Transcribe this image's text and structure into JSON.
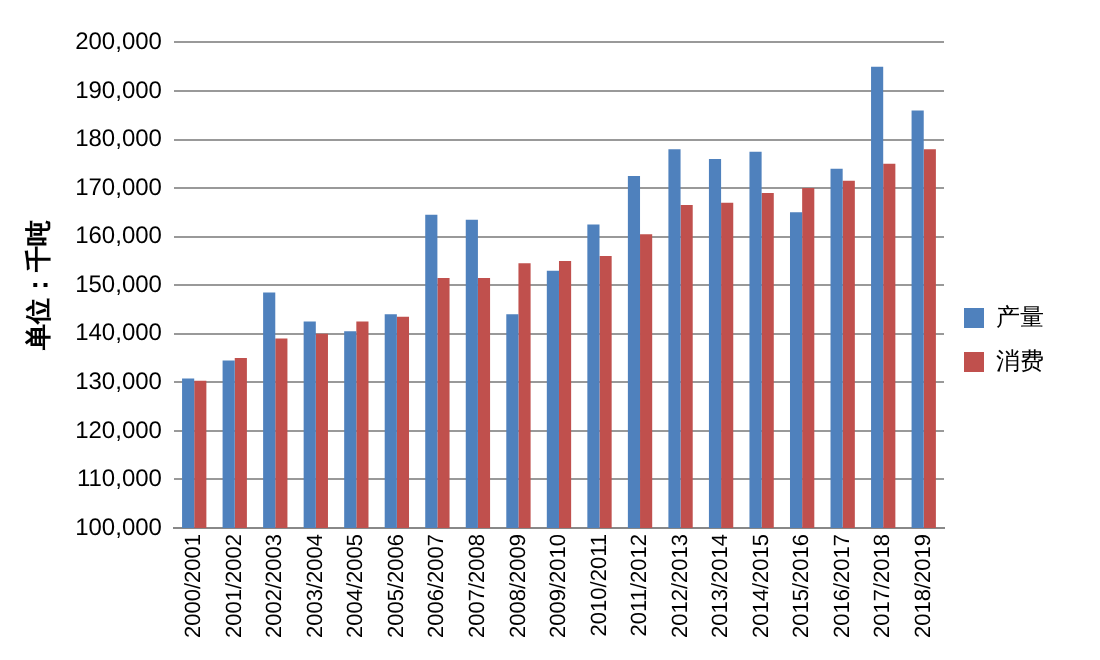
{
  "chart_data": {
    "type": "bar",
    "ylabel": "单位：千吨",
    "categories": [
      "2000/2001",
      "2001/2002",
      "2002/2003",
      "2003/2004",
      "2004/2005",
      "2005/2006",
      "2006/2007",
      "2007/2008",
      "2008/2009",
      "2009/2010",
      "2010/2011",
      "2011/2012",
      "2012/2013",
      "2013/2014",
      "2014/2015",
      "2015/2016",
      "2016/2017",
      "2017/2018",
      "2018/2019"
    ],
    "series": [
      {
        "name": "产量",
        "color": "#4f81bd",
        "values": [
          130800,
          134500,
          148500,
          142500,
          140500,
          144000,
          164500,
          163500,
          144000,
          153000,
          162500,
          172500,
          178000,
          176000,
          177500,
          165000,
          174000,
          195000,
          186000
        ]
      },
      {
        "name": "消费",
        "color": "#c0504d",
        "values": [
          130300,
          135000,
          139000,
          140000,
          142500,
          143500,
          151500,
          151500,
          154500,
          155000,
          156000,
          160500,
          166500,
          167000,
          169000,
          170000,
          171500,
          175000,
          178000
        ]
      }
    ],
    "ylim": [
      100000,
      200000
    ],
    "yticks": [
      {
        "value": 100000,
        "label": "100,000"
      },
      {
        "value": 110000,
        "label": "110,000"
      },
      {
        "value": 120000,
        "label": "120,000"
      },
      {
        "value": 130000,
        "label": "130,000"
      },
      {
        "value": 140000,
        "label": "140,000"
      },
      {
        "value": 150000,
        "label": "150,000"
      },
      {
        "value": 160000,
        "label": "160,000"
      },
      {
        "value": 170000,
        "label": "170,000"
      },
      {
        "value": 180000,
        "label": "180,000"
      },
      {
        "value": 190000,
        "label": "190,000"
      },
      {
        "value": 200000,
        "label": "200,000"
      }
    ],
    "grid": "y",
    "legend": "right"
  }
}
